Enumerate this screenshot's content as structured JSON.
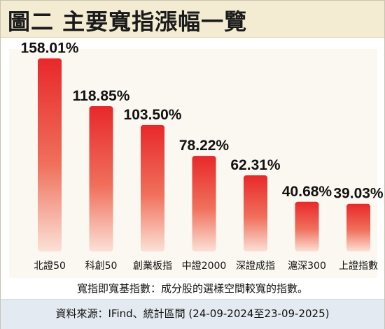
{
  "title": "圖二  主要寬指漲幅一覽",
  "note": "寬指即寬基指數：成分股的選樣空間較寬的指數。",
  "source": "資料來源：IFind、統計區間 (24-09-2024至23-09-2025)",
  "colors": {
    "bar_top": "#e8282a",
    "bar_bottom": "#fbe1d6",
    "title_bg": "#f3ecd3",
    "source_bg": "#e4eaf1"
  },
  "chart_data": {
    "type": "bar",
    "title": "圖二  主要寬指漲幅一覽",
    "xlabel": "",
    "ylabel": "",
    "unit": "%",
    "grid": false,
    "ylim": [
      0,
      160
    ],
    "categories": [
      "北證50",
      "科創50",
      "創業板指",
      "中證2000",
      "深證成指",
      "滬深300",
      "上證指數"
    ],
    "values": [
      158.01,
      118.85,
      103.5,
      78.22,
      62.31,
      40.68,
      39.03
    ],
    "value_labels": [
      "158.01%",
      "118.85%",
      "103.50%",
      "78.22%",
      "62.31%",
      "40.68%",
      "39.03%"
    ]
  }
}
